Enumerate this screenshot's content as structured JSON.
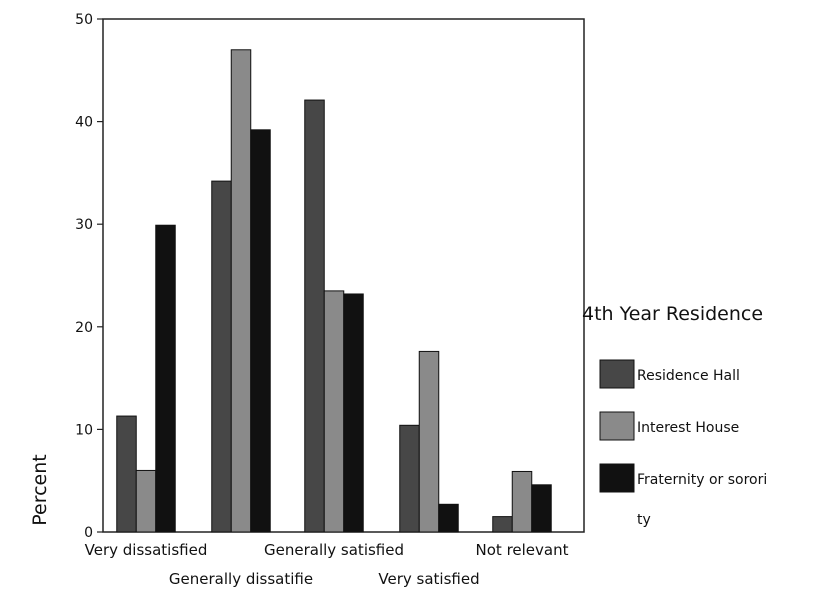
{
  "chart_data": {
    "type": "bar",
    "title": "",
    "xlabel": "",
    "ylabel": "Percent",
    "ylim": [
      0,
      50
    ],
    "yticks": [
      0,
      10,
      20,
      30,
      40,
      50
    ],
    "grid": false,
    "categories": [
      "Very dissatisfied",
      "Generally dissatifie",
      "Generally satisfied",
      "Very satisfied",
      "Not relevant"
    ],
    "legend": {
      "title": "4th Year Residence",
      "placement": "right"
    },
    "series": [
      {
        "name": "Residence Hall",
        "color": "#474747",
        "values": [
          11.3,
          34.2,
          42.1,
          10.4,
          1.5
        ]
      },
      {
        "name": "Interest House",
        "color": "#8a8a8a",
        "values": [
          6.0,
          47.0,
          23.5,
          17.6,
          5.9
        ]
      },
      {
        "name": "Fraternity or sorori ty",
        "legend_lines": [
          "Fraternity or sorori",
          "ty"
        ],
        "color": "#111111",
        "values": [
          29.9,
          39.2,
          23.2,
          2.7,
          4.6
        ]
      }
    ]
  }
}
